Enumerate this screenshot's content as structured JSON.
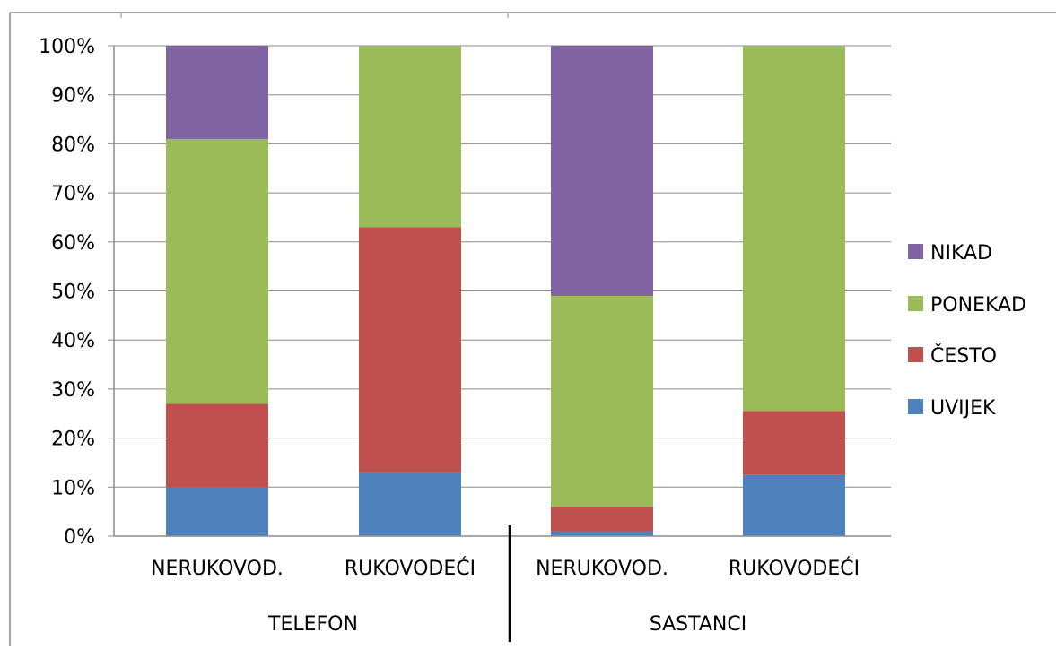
{
  "chart_data": {
    "type": "bar",
    "stacked": "percent",
    "groups": [
      {
        "label": "TELEFON",
        "categories": [
          "NERUKOVOD.",
          "RUKOVODEĆI"
        ]
      },
      {
        "label": "SASTANCI",
        "categories": [
          "NERUKOVOD.",
          "RUKOVODEĆI"
        ]
      }
    ],
    "categories": [
      "NERUKOVOD.",
      "RUKOVODEĆI",
      "NERUKOVOD.",
      "RUKOVODEĆI"
    ],
    "series": [
      {
        "name": "UVIJEK",
        "color": "#4f81bd",
        "values": [
          10,
          13,
          1,
          12.5
        ]
      },
      {
        "name": "ČESTO",
        "color": "#c0504d",
        "values": [
          17,
          50,
          5,
          13
        ]
      },
      {
        "name": "PONEKAD",
        "color": "#9bbb59",
        "values": [
          54,
          37,
          43,
          74.5
        ]
      },
      {
        "name": "NIKAD",
        "color": "#8064a2",
        "values": [
          19,
          0,
          51,
          0
        ]
      }
    ],
    "yticks": [
      "0%",
      "10%",
      "20%",
      "30%",
      "40%",
      "50%",
      "60%",
      "70%",
      "80%",
      "90%",
      "100%"
    ],
    "ylim": [
      0,
      100
    ],
    "grid": true,
    "legend": {
      "position": "right",
      "order": [
        "NIKAD",
        "PONEKAD",
        "ČESTO",
        "UVIJEK"
      ]
    }
  }
}
